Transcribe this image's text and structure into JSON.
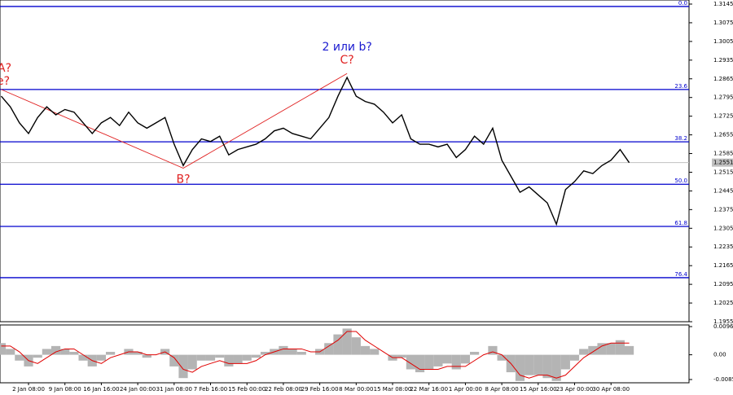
{
  "chart_data": {
    "type": "line",
    "categories": [
      null,
      null,
      null,
      "2 Jan 08:00",
      null,
      null,
      null,
      "9 Jan 08:00",
      null,
      null,
      null,
      "16 Jan 16:00",
      null,
      null,
      null,
      "24 Jan 00:00",
      null,
      null,
      null,
      "31 Jan 08:00",
      null,
      null,
      null,
      "7 Feb 16:00",
      null,
      null,
      null,
      "15 Feb 00:00",
      null,
      null,
      null,
      "22 Feb 08:00",
      null,
      null,
      null,
      "29 Feb 16:00",
      null,
      null,
      null,
      "8 Mar 00:00",
      null,
      null,
      null,
      "15 Mar 08:00",
      null,
      null,
      null,
      "22 Mar 16:00",
      null,
      null,
      null,
      "1 Apr 00:00",
      null,
      null,
      null,
      "8 Apr 08:00",
      null,
      null,
      null,
      "15 Apr 16:00",
      null,
      null,
      null,
      "23 Apr 00:00",
      null,
      null,
      null,
      "30 Apr 08:00",
      null,
      null
    ],
    "series": [
      {
        "color": "#000000",
        "values": [
          1.28,
          1.276,
          1.27,
          1.266,
          1.272,
          1.276,
          1.273,
          1.275,
          1.274,
          1.27,
          1.266,
          1.27,
          1.272,
          1.269,
          1.274,
          1.27,
          1.268,
          1.27,
          1.272,
          1.262,
          1.254,
          1.26,
          1.264,
          1.263,
          1.265,
          1.258,
          1.26,
          1.261,
          1.262,
          1.264,
          1.267,
          1.268,
          1.266,
          1.265,
          1.264,
          1.268,
          1.272,
          1.28,
          1.287,
          1.28,
          1.278,
          1.277,
          1.274,
          1.27,
          1.273,
          1.264,
          1.262,
          1.262,
          1.261,
          1.262,
          1.257,
          1.26,
          1.265,
          1.262,
          1.268,
          1.256,
          1.25,
          1.244,
          1.246,
          1.243,
          1.24,
          1.232,
          1.245,
          1.248,
          1.252,
          1.251,
          1.254,
          1.256,
          1.26,
          1.2551
        ]
      }
    ],
    "ylim": [
      1.1955,
      1.3145
    ],
    "yticks": [
      1.3145,
      1.3075,
      1.3005,
      1.2935,
      1.2865,
      1.2795,
      1.2725,
      1.2655,
      1.2585,
      1.2515,
      1.2445,
      1.2375,
      1.2305,
      1.2235,
      1.2165,
      1.2095,
      1.2025,
      1.1955
    ],
    "last_price": {
      "value": 1.2551,
      "label": "1.2551",
      "color": "#c0c0c0"
    },
    "fib_color": "#0000cd",
    "fib_levels": [
      {
        "level": "0.0",
        "price": 1.3136
      },
      {
        "level": "23.6",
        "price": 1.2825
      },
      {
        "level": "38.2",
        "price": 1.2629
      },
      {
        "level": "50.0",
        "price": 1.247
      },
      {
        "level": "61.8",
        "price": 1.2312
      },
      {
        "level": "76.4",
        "price": 1.212
      }
    ],
    "wave_color": "#e02020",
    "wave": [
      {
        "label": "A?",
        "index": 0,
        "price": 1.2825
      },
      {
        "label": "B?",
        "index": 20,
        "price": 1.253
      },
      {
        "label": "C?",
        "index": 38,
        "price": 1.2885
      }
    ],
    "annotations": [
      {
        "text": "e?",
        "color": "#e02020"
      },
      {
        "text": "2 или b?",
        "color": "#1c1cd0"
      }
    ],
    "oscillator": {
      "ylim": [
        -0.0085,
        0.00968
      ],
      "yticks": [
        {
          "value": 0.00968,
          "label": "0.00968"
        },
        {
          "value": 0,
          "label": "0.00"
        },
        {
          "value": -0.0085,
          "label": "-0.0085"
        }
      ],
      "histogram": {
        "color": "#b4b4b4",
        "values": [
          0.004,
          0.002,
          -0.002,
          -0.004,
          -0.001,
          0.002,
          0.003,
          0.002,
          0.001,
          -0.002,
          -0.004,
          -0.002,
          0.001,
          0.0,
          0.002,
          0.001,
          -0.001,
          0.0,
          0.002,
          -0.004,
          -0.008,
          -0.005,
          -0.002,
          -0.002,
          -0.001,
          -0.004,
          -0.003,
          -0.002,
          -0.001,
          0.001,
          0.002,
          0.003,
          0.002,
          0.001,
          0.0,
          0.002,
          0.004,
          0.007,
          0.009,
          0.006,
          0.003,
          0.002,
          0.0,
          -0.002,
          -0.001,
          -0.005,
          -0.006,
          -0.005,
          -0.004,
          -0.003,
          -0.005,
          -0.003,
          0.001,
          0.0,
          0.003,
          -0.002,
          -0.006,
          -0.009,
          -0.007,
          -0.007,
          -0.008,
          -0.009,
          -0.005,
          -0.002,
          0.002,
          0.003,
          0.004,
          0.004,
          0.005,
          0.003
        ]
      },
      "signal": {
        "color": "#e00000",
        "values": [
          0.003,
          0.003,
          0.001,
          -0.002,
          -0.003,
          -0.001,
          0.001,
          0.002,
          0.002,
          0.0,
          -0.002,
          -0.003,
          -0.001,
          0.0,
          0.001,
          0.001,
          0.0,
          0.0,
          0.001,
          -0.001,
          -0.005,
          -0.006,
          -0.004,
          -0.003,
          -0.002,
          -0.003,
          -0.003,
          -0.003,
          -0.002,
          0.0,
          0.001,
          0.002,
          0.002,
          0.002,
          0.001,
          0.001,
          0.003,
          0.005,
          0.008,
          0.008,
          0.005,
          0.003,
          0.001,
          -0.001,
          -0.001,
          -0.003,
          -0.005,
          -0.005,
          -0.005,
          -0.004,
          -0.004,
          -0.004,
          -0.002,
          0.0,
          0.001,
          0.0,
          -0.003,
          -0.007,
          -0.008,
          -0.007,
          -0.007,
          -0.008,
          -0.007,
          -0.004,
          -0.001,
          0.001,
          0.003,
          0.004,
          0.004,
          0.004
        ]
      }
    }
  }
}
